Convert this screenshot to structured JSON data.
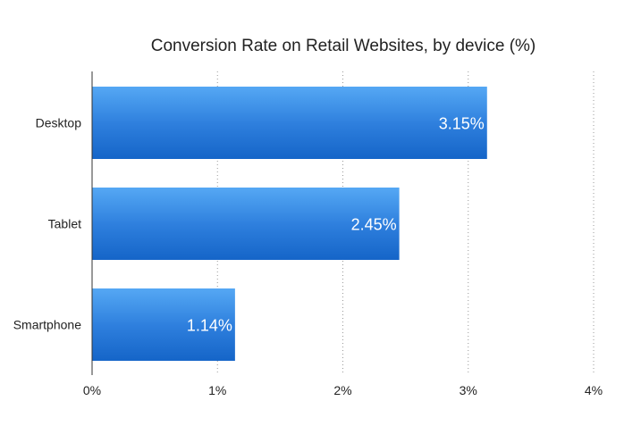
{
  "chart_data": {
    "type": "bar",
    "orientation": "horizontal",
    "title": "Conversion Rate on Retail Websites, by device (%)",
    "categories": [
      "Desktop",
      "Tablet",
      "Smartphone"
    ],
    "values": [
      3.15,
      2.45,
      1.14
    ],
    "data_labels": [
      "3.15%",
      "2.45%",
      "1.14%"
    ],
    "xlim": [
      0,
      4
    ],
    "x_ticks": [
      0,
      1,
      2,
      3,
      4
    ],
    "x_tick_labels": [
      "0%",
      "1%",
      "2%",
      "3%",
      "4%"
    ],
    "grid": "vertical dotted",
    "bar_color": "#2f80de",
    "bar_color_light": "#55a8f4",
    "bar_color_dark": "#1565c8"
  }
}
